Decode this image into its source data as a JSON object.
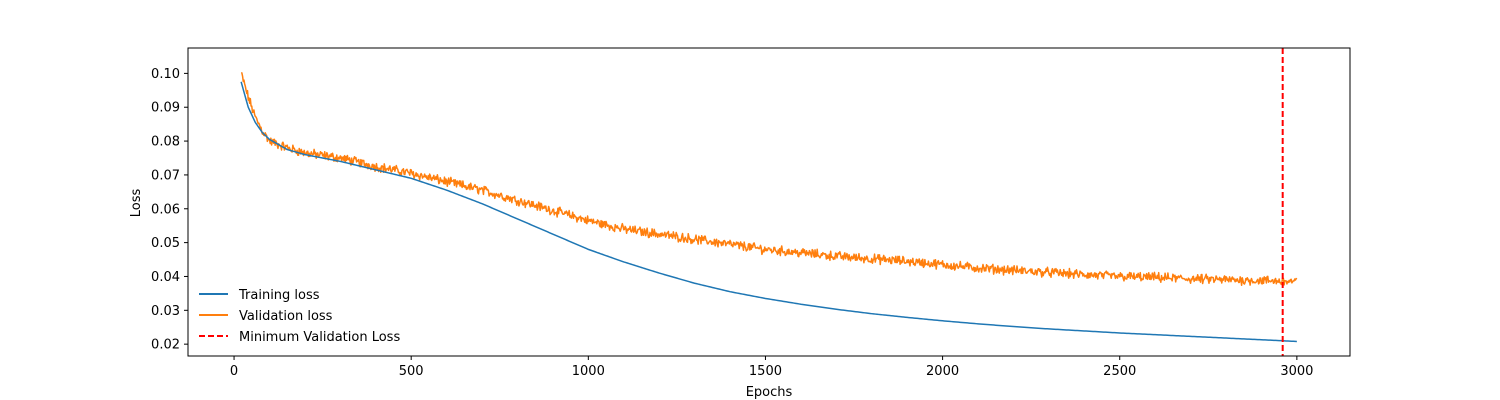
{
  "chart_data": {
    "type": "line",
    "title": "",
    "xlabel": "Epochs",
    "ylabel": "Loss",
    "xlim": [
      -130,
      3150
    ],
    "ylim": [
      0.0165,
      0.1075
    ],
    "x_ticks": [
      0,
      500,
      1000,
      1500,
      2000,
      2500,
      3000
    ],
    "y_ticks": [
      0.02,
      0.03,
      0.04,
      0.05,
      0.06,
      0.07,
      0.08,
      0.09,
      0.1
    ],
    "x_tick_labels": [
      "0",
      "500",
      "1000",
      "1500",
      "2000",
      "2500",
      "3000"
    ],
    "y_tick_labels": [
      "0.02",
      "0.03",
      "0.04",
      "0.05",
      "0.06",
      "0.07",
      "0.08",
      "0.09",
      "0.10"
    ],
    "grid": false,
    "legend_position": "lower-left",
    "series": [
      {
        "name": "Training loss",
        "color": "#1f77b4",
        "style": "solid",
        "x": [
          20,
          40,
          60,
          80,
          100,
          150,
          200,
          300,
          400,
          500,
          600,
          700,
          800,
          900,
          1000,
          1100,
          1200,
          1300,
          1400,
          1500,
          1600,
          1700,
          1800,
          1900,
          2000,
          2100,
          2200,
          2300,
          2400,
          2500,
          2600,
          2700,
          2800,
          2900,
          3000
        ],
        "y": [
          0.0975,
          0.09,
          0.0855,
          0.0825,
          0.0805,
          0.0775,
          0.076,
          0.074,
          0.0715,
          0.069,
          0.0655,
          0.0615,
          0.057,
          0.0525,
          0.048,
          0.0443,
          0.041,
          0.038,
          0.0355,
          0.0335,
          0.0318,
          0.0303,
          0.029,
          0.0279,
          0.0269,
          0.026,
          0.0252,
          0.0245,
          0.0239,
          0.0233,
          0.0228,
          0.0223,
          0.0218,
          0.0213,
          0.0208
        ]
      },
      {
        "name": "Validation loss",
        "color": "#ff7f0e",
        "style": "solid",
        "noise_amplitude": 0.0011,
        "x": [
          20,
          40,
          60,
          80,
          100,
          150,
          200,
          300,
          400,
          500,
          600,
          700,
          800,
          900,
          1000,
          1100,
          1200,
          1300,
          1400,
          1500,
          1600,
          1700,
          1800,
          1900,
          2000,
          2100,
          2200,
          2300,
          2400,
          2500,
          2600,
          2700,
          2800,
          2900,
          3000
        ],
        "y": [
          0.1,
          0.093,
          0.087,
          0.083,
          0.08,
          0.078,
          0.0765,
          0.075,
          0.0725,
          0.0705,
          0.068,
          0.0655,
          0.0625,
          0.0595,
          0.0565,
          0.054,
          0.0525,
          0.051,
          0.0495,
          0.048,
          0.047,
          0.046,
          0.0452,
          0.0445,
          0.0435,
          0.0425,
          0.0418,
          0.0412,
          0.0405,
          0.04,
          0.0397,
          0.0393,
          0.039,
          0.0388,
          0.0385
        ]
      }
    ],
    "vline": {
      "name": "Minimum Validation Loss",
      "x": 2960,
      "color": "#ff0000",
      "style": "dashed"
    }
  }
}
